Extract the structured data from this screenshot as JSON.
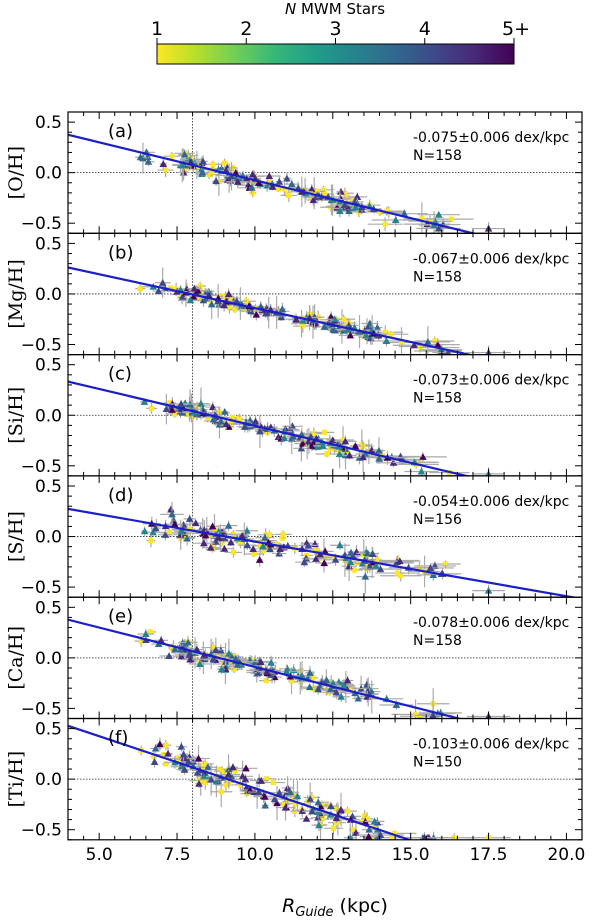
{
  "colorbar": {
    "label_italic": "N",
    "label_rest": " MWM Stars",
    "ticks": [
      "1",
      "2",
      "3",
      "4",
      "5+"
    ],
    "colormap": [
      "#fde725",
      "#b5de2b",
      "#6ece58",
      "#35b779",
      "#1f9e89",
      "#26828e",
      "#31688e",
      "#3e4989",
      "#482878",
      "#440154"
    ]
  },
  "chart_data": [
    {
      "type": "scatter",
      "panel_letter": "(a)",
      "ylabel": "[O/H]",
      "slope_text": "-0.075±0.006 dex/kpc",
      "n_text": "N=158",
      "slope": -0.075,
      "intercept": 0.675,
      "fit_range": [
        4.0,
        17.3
      ],
      "n_points": 158,
      "spread": 0.09
    },
    {
      "type": "scatter",
      "panel_letter": "(b)",
      "ylabel": "[Mg/H]",
      "slope_text": "-0.067±0.006 dex/kpc",
      "n_text": "N=158",
      "slope": -0.067,
      "intercept": 0.53,
      "fit_range": [
        4.0,
        17.3
      ],
      "n_points": 158,
      "spread": 0.07
    },
    {
      "type": "scatter",
      "panel_letter": "(c)",
      "ylabel": "[Si/H]",
      "slope_text": "-0.073±0.006 dex/kpc",
      "n_text": "N=158",
      "slope": -0.073,
      "intercept": 0.625,
      "fit_range": [
        4.0,
        17.3
      ],
      "n_points": 158,
      "spread": 0.08
    },
    {
      "type": "scatter",
      "panel_letter": "(d)",
      "ylabel": "[S/H]",
      "slope_text": "-0.054±0.006 dex/kpc",
      "n_text": "N=156",
      "slope": -0.054,
      "intercept": 0.49,
      "fit_range": [
        4.0,
        20.5
      ],
      "n_points": 156,
      "spread": 0.12
    },
    {
      "type": "scatter",
      "panel_letter": "(e)",
      "ylabel": "[Ca/H]",
      "slope_text": "-0.078±0.006 dex/kpc",
      "n_text": "N=158",
      "slope": -0.078,
      "intercept": 0.69,
      "fit_range": [
        4.0,
        16.7
      ],
      "n_points": 158,
      "spread": 0.09
    },
    {
      "type": "scatter",
      "panel_letter": "(f)",
      "ylabel": "[Ti/H]",
      "slope_text": "-0.103±0.006 dex/kpc",
      "n_text": "N=150",
      "slope": -0.103,
      "intercept": 0.94,
      "fit_range": [
        4.0,
        15.3
      ],
      "n_points": 150,
      "spread": 0.13
    }
  ],
  "axes": {
    "xlim": [
      4.0,
      20.5
    ],
    "ylim": [
      -0.6,
      0.6
    ],
    "xticks": [
      5.0,
      7.5,
      10.0,
      12.5,
      15.0,
      17.5,
      20.0
    ],
    "xtick_labels": [
      "5.0",
      "7.5",
      "10.0",
      "12.5",
      "15.0",
      "17.5",
      "20.0"
    ],
    "yticks": [
      0.5,
      0.0,
      -0.5
    ],
    "ytick_labels": [
      "0.5",
      "0.0",
      "−0.5"
    ],
    "solar_radius": 8.0,
    "xlabel_main": "R",
    "xlabel_sub": "Guide",
    "xlabel_unit": " (kpc)"
  }
}
